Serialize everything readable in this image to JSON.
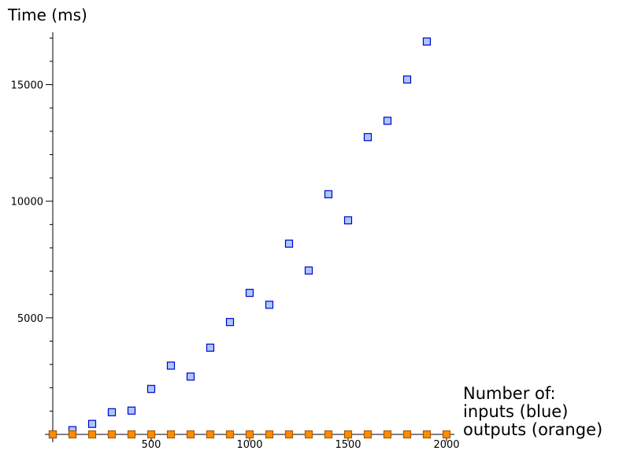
{
  "chart_data": {
    "type": "scatter",
    "ylabel": "Time (ms)",
    "xlabel_lines": [
      "Number of:",
      "inputs (blue)",
      "outputs (orange)"
    ],
    "xlim": [
      0,
      2000
    ],
    "ylim": [
      0,
      17000
    ],
    "xticks": [
      500,
      1000,
      1500,
      2000
    ],
    "yticks": [
      5000,
      10000,
      15000
    ],
    "grid": false,
    "series": [
      {
        "name": "inputs (blue)",
        "color": "#aac8ff",
        "edge_color": "#0000cc",
        "x": [
          0,
          100,
          200,
          300,
          400,
          500,
          600,
          700,
          800,
          900,
          1000,
          1100,
          1200,
          1300,
          1400,
          1500,
          1600,
          1700,
          1800,
          1900
        ],
        "y": [
          0,
          180,
          450,
          950,
          1020,
          1950,
          2950,
          2480,
          3720,
          4820,
          6070,
          5560,
          8180,
          7030,
          10300,
          9180,
          12750,
          13450,
          15220,
          16850
        ]
      },
      {
        "name": "outputs (orange)",
        "color": "#ff8c00",
        "edge_color": "#a85a00",
        "x": [
          0,
          100,
          200,
          300,
          400,
          500,
          600,
          700,
          800,
          900,
          1000,
          1100,
          1200,
          1300,
          1400,
          1500,
          1600,
          1700,
          1800,
          1900,
          2000
        ],
        "y": [
          0,
          0,
          0,
          0,
          0,
          0,
          0,
          0,
          0,
          0,
          0,
          0,
          0,
          0,
          0,
          0,
          0,
          0,
          0,
          0,
          0
        ]
      }
    ]
  }
}
